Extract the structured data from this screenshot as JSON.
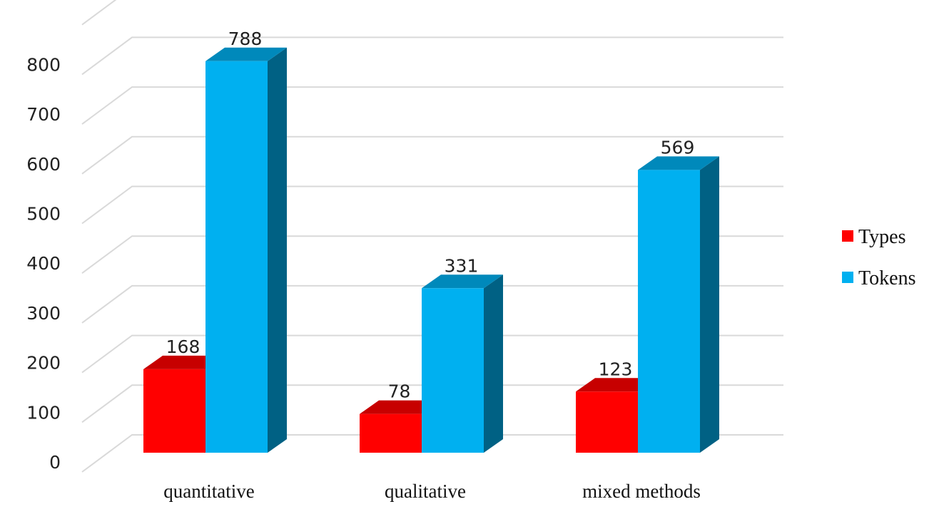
{
  "chart_data": {
    "type": "bar",
    "categories": [
      "quantitative",
      "qualitative",
      "mixed methods"
    ],
    "series": [
      {
        "name": "Types",
        "values": [
          168,
          78,
          123
        ],
        "color": "#ff0000"
      },
      {
        "name": "Tokens",
        "values": [
          788,
          331,
          569
        ],
        "color": "#00b0f0"
      }
    ],
    "y_ticks": [
      "0",
      "100",
      "200",
      "300",
      "400",
      "500",
      "600",
      "700",
      "800"
    ],
    "ylim": [
      0,
      900
    ],
    "data_labels": true,
    "grid": true,
    "legend_position": "right",
    "style": "3d-column"
  }
}
